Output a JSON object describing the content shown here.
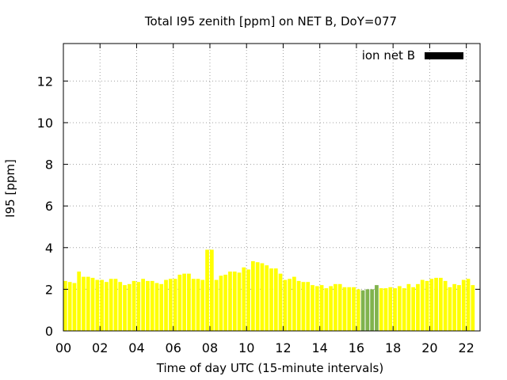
{
  "chart_data": {
    "type": "bar",
    "title": "Total I95 zenith [ppm] on NET B, DoY=077",
    "xlabel": "Time of day UTC (15-minute intervals)",
    "ylabel": "I95 [ppm]",
    "xlim": [
      0,
      22.75
    ],
    "ylim": [
      0,
      13.8
    ],
    "x_ticks": [
      "00",
      "02",
      "04",
      "06",
      "08",
      "10",
      "12",
      "14",
      "16",
      "18",
      "20",
      "22"
    ],
    "x_tick_values": [
      0,
      2,
      4,
      6,
      8,
      10,
      12,
      14,
      16,
      18,
      20,
      22
    ],
    "y_ticks": [
      "0",
      "2",
      "4",
      "6",
      "8",
      "10",
      "12"
    ],
    "y_tick_values": [
      0,
      2,
      4,
      6,
      8,
      10,
      12
    ],
    "grid": true,
    "legend": {
      "label": "ion net B",
      "placement": "top-right",
      "color": "#000000"
    },
    "colors": {
      "normal": "#ffff00",
      "highlight": "#80b34d"
    },
    "bar_interval_hours": 0.25,
    "series": [
      {
        "values": [
          2.4,
          2.35,
          2.3,
          2.85,
          2.6,
          2.6,
          2.55,
          2.45,
          2.45,
          2.35,
          2.5,
          2.5,
          2.35,
          2.2,
          2.25,
          2.4,
          2.35,
          2.5,
          2.4,
          2.4,
          2.3,
          2.25,
          2.45,
          2.5,
          2.5,
          2.7,
          2.75,
          2.75,
          2.5,
          2.5,
          2.45,
          3.9,
          3.9,
          2.45,
          2.65,
          2.7,
          2.85,
          2.85,
          2.8,
          3.05,
          2.95,
          3.35,
          3.3,
          3.25,
          3.15,
          3.0,
          3.0,
          2.75,
          2.45,
          2.5,
          2.6,
          2.4,
          2.35,
          2.35,
          2.2,
          2.15,
          2.2,
          2.05,
          2.15,
          2.25,
          2.25,
          2.1,
          2.1,
          2.1,
          2.0,
          1.95,
          2.0,
          2.0,
          2.2,
          2.05,
          2.05,
          2.1,
          2.05,
          2.15,
          2.05,
          2.25,
          2.1,
          2.25,
          2.45,
          2.4,
          2.5,
          2.55,
          2.55,
          2.4,
          2.1,
          2.25,
          2.2,
          2.45,
          2.5,
          2.2
        ],
        "highlight_indices": [
          65,
          66,
          67,
          68
        ]
      }
    ]
  }
}
